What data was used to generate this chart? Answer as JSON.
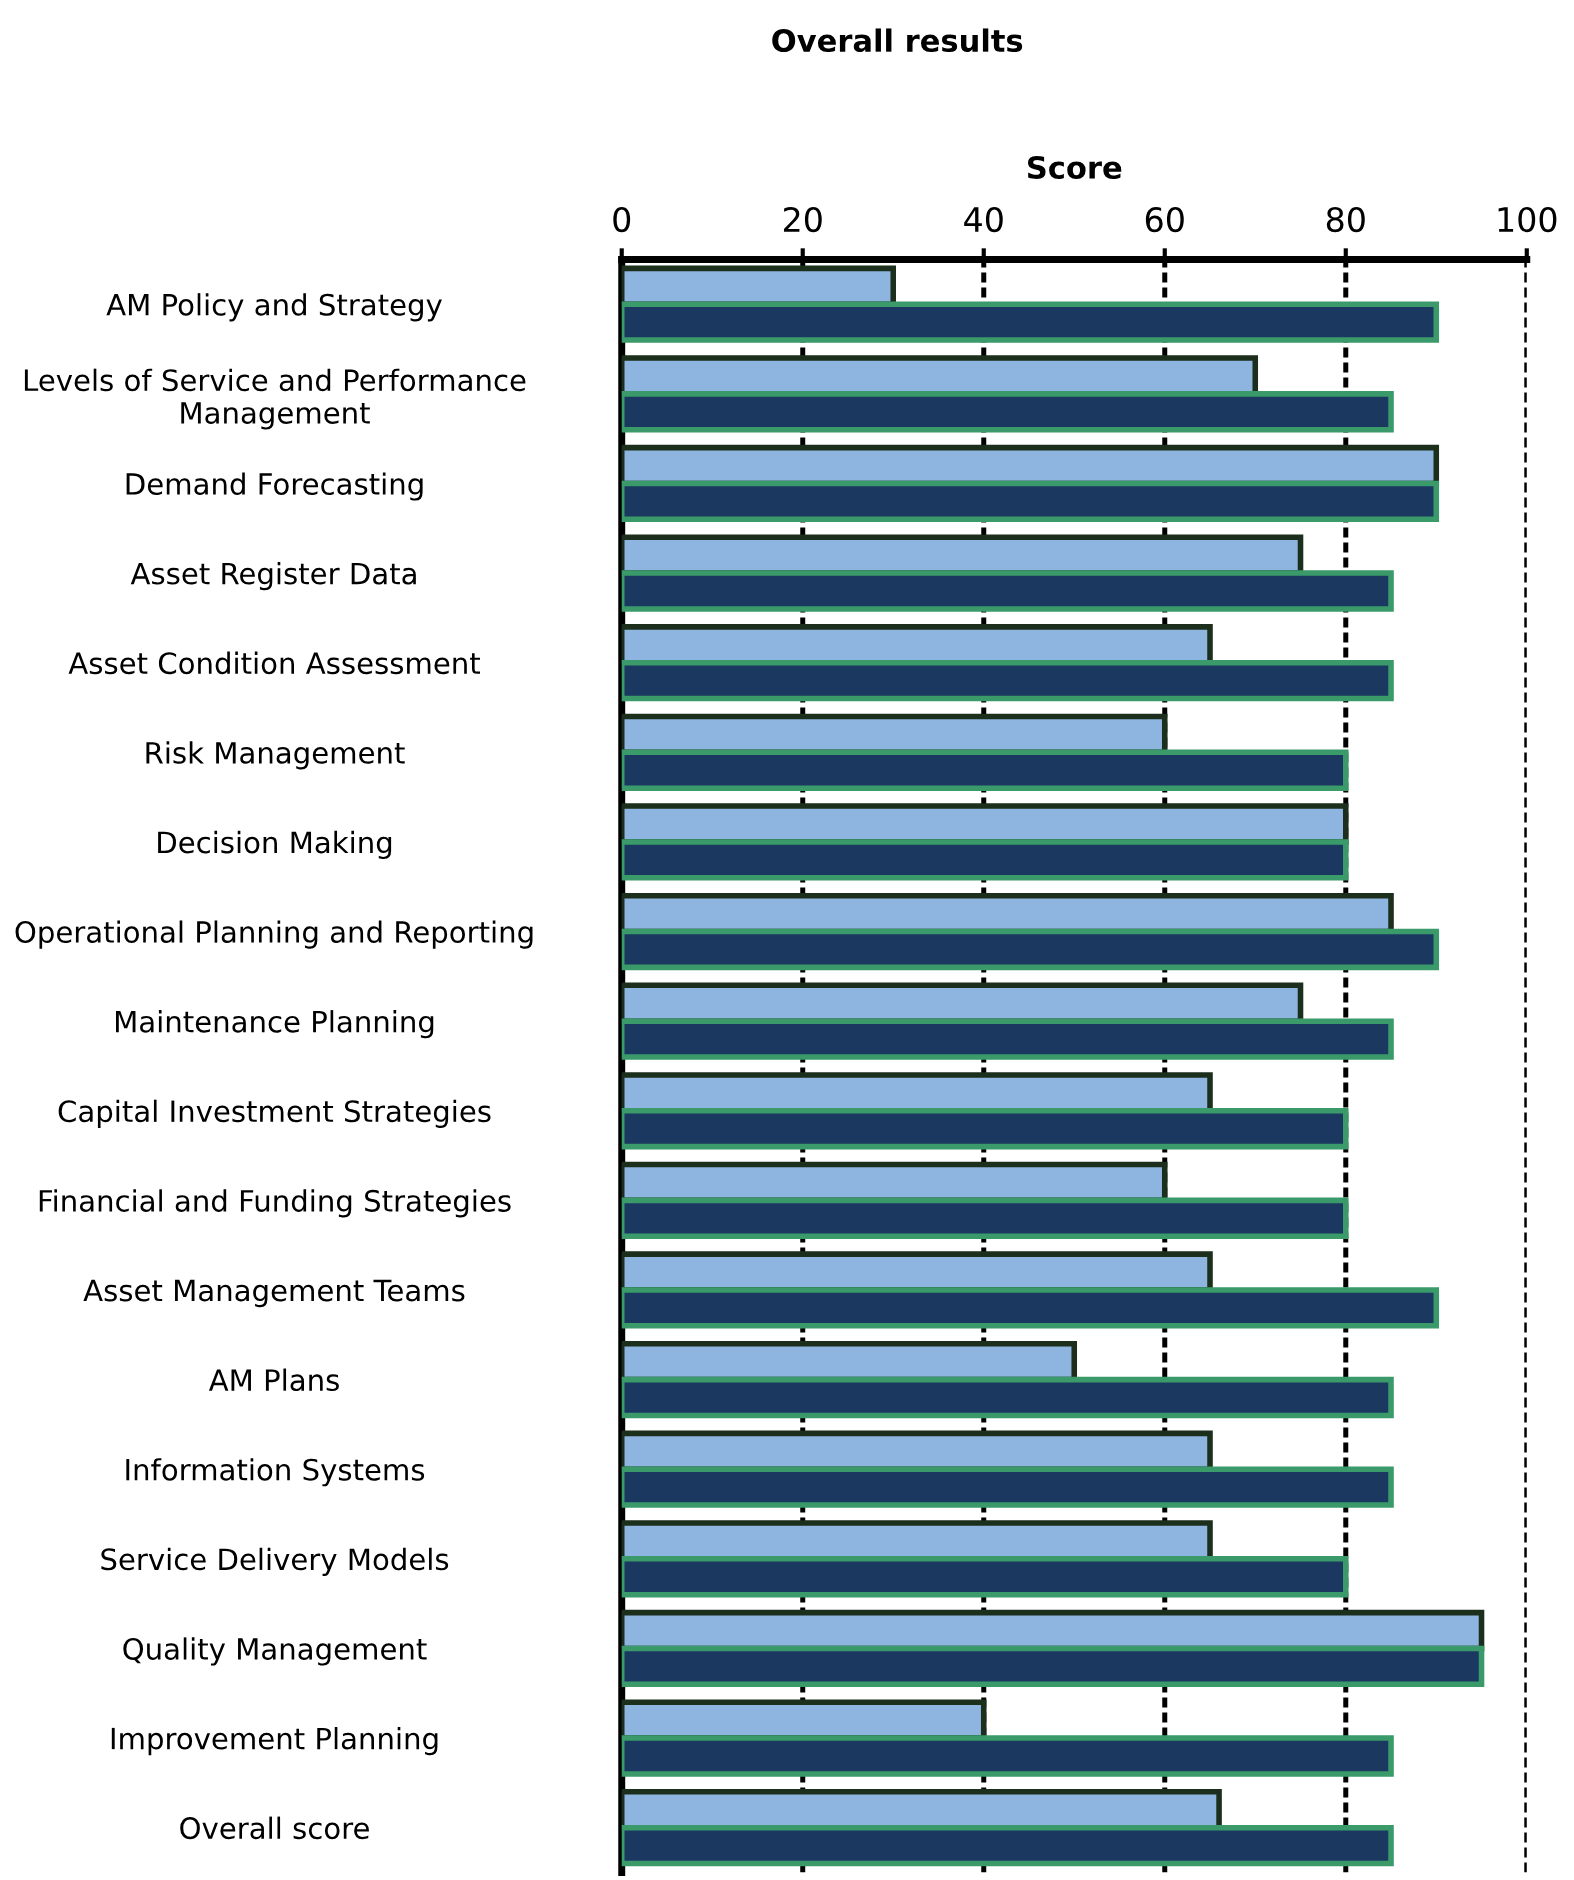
{
  "chart_data": {
    "type": "bar",
    "orientation": "horizontal",
    "title": "Overall results",
    "xlabel": "Score",
    "categories": [
      "AM Policy and Strategy",
      "Levels of Service and Performance\nManagement",
      "Demand Forecasting",
      "Asset Register Data",
      "Asset Condition Assessment",
      "Risk Management",
      "Decision Making",
      "Operational Planning and Reporting",
      "Maintenance Planning",
      "Capital Investment Strategies",
      "Financial and Funding Strategies",
      "Asset Management Teams",
      "AM Plans",
      "Information Systems",
      "Service Delivery Models",
      "Quality Management",
      "Improvement Planning",
      "Overall score"
    ],
    "series": [
      {
        "color": "#8eb4e0",
        "values": [
          30,
          70,
          90,
          75,
          65,
          60,
          80,
          85,
          75,
          65,
          60,
          65,
          50,
          65,
          65,
          95,
          40,
          66
        ]
      },
      {
        "color": "#1a3860",
        "values": [
          90,
          85,
          90,
          85,
          85,
          80,
          80,
          90,
          85,
          80,
          80,
          90,
          85,
          85,
          80,
          95,
          85,
          85
        ]
      }
    ],
    "xlim": [
      0,
      100
    ],
    "xticks": [
      0,
      20,
      40,
      60,
      80,
      100
    ],
    "grid": "x",
    "legend": false
  }
}
